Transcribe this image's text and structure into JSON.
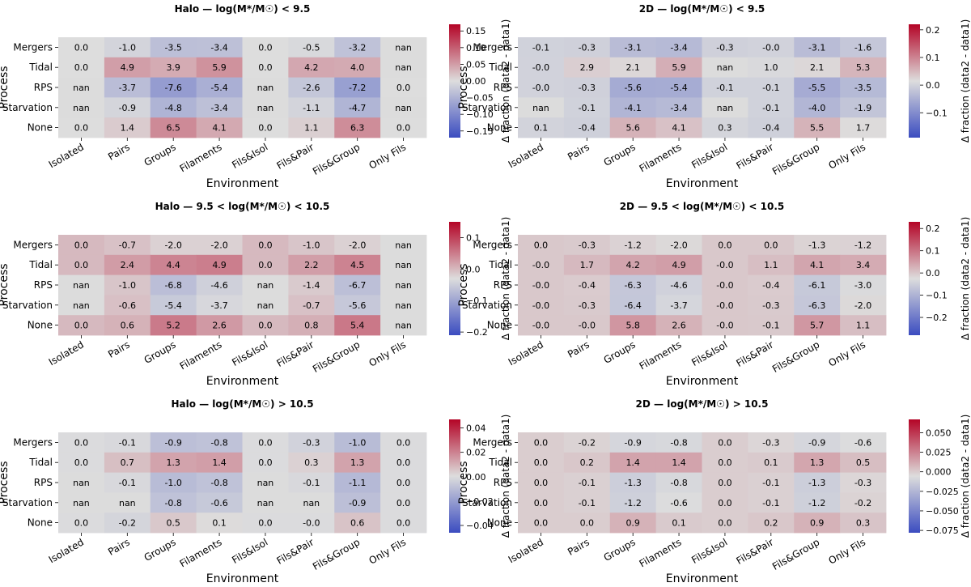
{
  "chart_data": [
    {
      "type": "heatmap",
      "title": "Halo — log(M*/M☉) < 9.5",
      "xlabel": "Environment",
      "ylabel": "Process",
      "colorbar_label": "Δ fraction (data2 - data1)",
      "x_categories": [
        "Isolated",
        "Pairs",
        "Groups",
        "Filaments",
        "Fils&Isol",
        "Fils&Pair",
        "Fils&Group",
        "Only Fils"
      ],
      "y_categories": [
        "Mergers",
        "Tidal",
        "RPS",
        "Starvation",
        "None"
      ],
      "vrange": [
        -0.17,
        0.17
      ],
      "colorbar_ticks": [
        0.15,
        0.1,
        0.05,
        0.0,
        -0.05,
        -0.1,
        -0.15
      ],
      "colorbar_tick_labels": [
        "0.15",
        "0.10",
        "0.05",
        "0.00",
        "−0.05",
        "−0.10",
        "−0.15"
      ],
      "values": [
        [
          0.0,
          -1.0,
          -3.5,
          -3.4,
          0.0,
          -0.5,
          -3.2,
          null
        ],
        [
          0.0,
          4.9,
          3.9,
          5.9,
          0.0,
          4.2,
          4.0,
          null
        ],
        [
          null,
          -3.7,
          -7.6,
          -5.4,
          null,
          -2.6,
          -7.2,
          0.0
        ],
        [
          null,
          -0.9,
          -4.8,
          -3.4,
          null,
          -1.1,
          -4.7,
          null
        ],
        [
          0.0,
          1.4,
          6.5,
          4.1,
          0.0,
          1.1,
          6.3,
          0.0
        ]
      ],
      "labels": [
        [
          "0.0",
          "-1.0",
          "-3.5",
          "-3.4",
          "0.0",
          "-0.5",
          "-3.2",
          "nan"
        ],
        [
          "0.0",
          "4.9",
          "3.9",
          "5.9",
          "0.0",
          "4.2",
          "4.0",
          "nan"
        ],
        [
          "nan",
          "-3.7",
          "-7.6",
          "-5.4",
          "nan",
          "-2.6",
          "-7.2",
          "0.0"
        ],
        [
          "nan",
          "-0.9",
          "-4.8",
          "-3.4",
          "nan",
          "-1.1",
          "-4.7",
          "nan"
        ],
        [
          "0.0",
          "1.4",
          "6.5",
          "4.1",
          "0.0",
          "1.1",
          "6.3",
          "0.0"
        ]
      ]
    },
    {
      "type": "heatmap",
      "title": "2D — log(M*/M☉) < 9.5",
      "xlabel": "Environment",
      "ylabel": "Process",
      "colorbar_label": "Δ fraction (data2 - data1)",
      "x_categories": [
        "Isolated",
        "Pairs",
        "Groups",
        "Filaments",
        "Fils&Isol",
        "Fils&Pair",
        "Fils&Group",
        "Only Fils"
      ],
      "y_categories": [
        "Mergers",
        "Tidal",
        "RPS",
        "Starvation",
        "None"
      ],
      "vrange": [
        -0.19,
        0.22
      ],
      "colorbar_ticks": [
        0.2,
        0.1,
        0.0,
        -0.1
      ],
      "colorbar_tick_labels": [
        "0.2",
        "0.1",
        "0.0",
        "−0.1"
      ],
      "values": [
        [
          -0.1,
          -0.3,
          -3.1,
          -3.4,
          -0.3,
          -0.0,
          -3.1,
          -1.6
        ],
        [
          -0.0,
          2.9,
          2.1,
          5.9,
          null,
          1.0,
          2.1,
          5.3
        ],
        [
          -0.0,
          -0.3,
          -5.6,
          -5.4,
          -0.1,
          -0.1,
          -5.5,
          -3.5
        ],
        [
          null,
          -0.1,
          -4.1,
          -3.4,
          null,
          -0.1,
          -4.0,
          -1.9
        ],
        [
          0.1,
          -0.4,
          5.6,
          4.1,
          0.3,
          -0.4,
          5.5,
          1.7
        ]
      ],
      "labels": [
        [
          "-0.1",
          "-0.3",
          "-3.1",
          "-3.4",
          "-0.3",
          "-0.0",
          "-3.1",
          "-1.6"
        ],
        [
          "-0.0",
          "2.9",
          "2.1",
          "5.9",
          "nan",
          "1.0",
          "2.1",
          "5.3"
        ],
        [
          "-0.0",
          "-0.3",
          "-5.6",
          "-5.4",
          "-0.1",
          "-0.1",
          "-5.5",
          "-3.5"
        ],
        [
          "nan",
          "-0.1",
          "-4.1",
          "-3.4",
          "nan",
          "-0.1",
          "-4.0",
          "-1.9"
        ],
        [
          "0.1",
          "-0.4",
          "5.6",
          "4.1",
          "0.3",
          "-0.4",
          "5.5",
          "1.7"
        ]
      ]
    },
    {
      "type": "heatmap",
      "title": "Halo — 9.5 < log(M*/M☉) < 10.5",
      "xlabel": "Environment",
      "ylabel": "Process",
      "colorbar_label": "Δ fraction (data2 - data1)",
      "x_categories": [
        "Isolated",
        "Pairs",
        "Groups",
        "Filaments",
        "Fils&Isol",
        "Fils&Pair",
        "Fils&Group",
        "Only Fils"
      ],
      "y_categories": [
        "Mergers",
        "Tidal",
        "RPS",
        "Starvation",
        "None"
      ],
      "vrange": [
        -0.21,
        0.15
      ],
      "colorbar_ticks": [
        0.1,
        0.0,
        -0.1,
        -0.2
      ],
      "colorbar_tick_labels": [
        "0.1",
        "0.0",
        "−0.1",
        "−0.2"
      ],
      "values": [
        [
          0.0,
          -0.7,
          -2.0,
          -2.0,
          0.0,
          -1.0,
          -2.0,
          null
        ],
        [
          0.0,
          2.4,
          4.4,
          4.9,
          0.0,
          2.2,
          4.5,
          null
        ],
        [
          null,
          -1.0,
          -6.8,
          -4.6,
          null,
          -1.4,
          -6.7,
          null
        ],
        [
          null,
          -0.6,
          -5.4,
          -3.7,
          null,
          -0.7,
          -5.6,
          null
        ],
        [
          0.0,
          0.6,
          5.2,
          2.6,
          0.0,
          0.8,
          5.4,
          null
        ]
      ],
      "labels": [
        [
          "0.0",
          "-0.7",
          "-2.0",
          "-2.0",
          "0.0",
          "-1.0",
          "-2.0",
          "nan"
        ],
        [
          "0.0",
          "2.4",
          "4.4",
          "4.9",
          "0.0",
          "2.2",
          "4.5",
          "nan"
        ],
        [
          "nan",
          "-1.0",
          "-6.8",
          "-4.6",
          "nan",
          "-1.4",
          "-6.7",
          "nan"
        ],
        [
          "nan",
          "-0.6",
          "-5.4",
          "-3.7",
          "nan",
          "-0.7",
          "-5.6",
          "nan"
        ],
        [
          "0.0",
          "0.6",
          "5.2",
          "2.6",
          "0.0",
          "0.8",
          "5.4",
          "nan"
        ]
      ]
    },
    {
      "type": "heatmap",
      "title": "2D — 9.5 < log(M*/M☉) < 10.5",
      "xlabel": "Environment",
      "ylabel": "Process",
      "colorbar_label": "Δ fraction (data2 - data1)",
      "x_categories": [
        "Isolated",
        "Pairs",
        "Groups",
        "Filaments",
        "Fils&Isol",
        "Fils&Pair",
        "Fils&Group",
        "Only Fils"
      ],
      "y_categories": [
        "Mergers",
        "Tidal",
        "RPS",
        "Starvation",
        "None"
      ],
      "vrange": [
        -0.28,
        0.23
      ],
      "colorbar_ticks": [
        0.2,
        0.1,
        0.0,
        -0.1,
        -0.2
      ],
      "colorbar_tick_labels": [
        "0.2",
        "0.1",
        "0.0",
        "−0.1",
        "−0.2"
      ],
      "values": [
        [
          0.0,
          -0.3,
          -1.2,
          -2.0,
          0.0,
          0.0,
          -1.3,
          -1.2
        ],
        [
          -0.0,
          1.7,
          4.2,
          4.9,
          -0.0,
          1.1,
          4.1,
          3.4
        ],
        [
          -0.0,
          -0.4,
          -6.3,
          -4.6,
          -0.0,
          -0.4,
          -6.1,
          -3.0
        ],
        [
          -0.0,
          -0.3,
          -6.4,
          -3.7,
          -0.0,
          -0.3,
          -6.3,
          -2.0
        ],
        [
          -0.0,
          -0.0,
          5.8,
          2.6,
          -0.0,
          -0.1,
          5.7,
          1.1
        ]
      ],
      "labels": [
        [
          "0.0",
          "-0.3",
          "-1.2",
          "-2.0",
          "0.0",
          "0.0",
          "-1.3",
          "-1.2"
        ],
        [
          "-0.0",
          "1.7",
          "4.2",
          "4.9",
          "-0.0",
          "1.1",
          "4.1",
          "3.4"
        ],
        [
          "-0.0",
          "-0.4",
          "-6.3",
          "-4.6",
          "-0.0",
          "-0.4",
          "-6.1",
          "-3.0"
        ],
        [
          "-0.0",
          "-0.3",
          "-6.4",
          "-3.7",
          "-0.0",
          "-0.3",
          "-6.3",
          "-2.0"
        ],
        [
          "-0.0",
          "-0.0",
          "5.8",
          "2.6",
          "-0.0",
          "-0.1",
          "5.7",
          "1.1"
        ]
      ]
    },
    {
      "type": "heatmap",
      "title": "Halo — log(M*/M☉) > 10.5",
      "xlabel": "Environment",
      "ylabel": "Process",
      "colorbar_label": "Δ fraction (data2 - data1)",
      "x_categories": [
        "Isolated",
        "Pairs",
        "Groups",
        "Filaments",
        "Fils&Isol",
        "Fils&Pair",
        "Fils&Group",
        "Only Fils"
      ],
      "y_categories": [
        "Mergers",
        "Tidal",
        "RPS",
        "Starvation",
        "None"
      ],
      "vrange": [
        -0.046,
        0.047
      ],
      "colorbar_ticks": [
        0.04,
        0.02,
        0.0,
        -0.02,
        -0.04
      ],
      "colorbar_tick_labels": [
        "0.04",
        "0.02",
        "0.00",
        "−0.02",
        "−0.04"
      ],
      "values": [
        [
          0.0,
          -0.1,
          -0.9,
          -0.8,
          0.0,
          -0.3,
          -1.0,
          0.0
        ],
        [
          0.0,
          0.7,
          1.3,
          1.4,
          0.0,
          0.3,
          1.3,
          0.0
        ],
        [
          null,
          -0.1,
          -1.0,
          -0.8,
          null,
          -0.1,
          -1.1,
          0.0
        ],
        [
          null,
          null,
          -0.8,
          -0.6,
          null,
          null,
          -0.9,
          0.0
        ],
        [
          0.0,
          -0.2,
          0.5,
          0.1,
          0.0,
          -0.0,
          0.6,
          0.0
        ]
      ],
      "labels": [
        [
          "0.0",
          "-0.1",
          "-0.9",
          "-0.8",
          "0.0",
          "-0.3",
          "-1.0",
          "0.0"
        ],
        [
          "0.0",
          "0.7",
          "1.3",
          "1.4",
          "0.0",
          "0.3",
          "1.3",
          "0.0"
        ],
        [
          "nan",
          "-0.1",
          "-1.0",
          "-0.8",
          "nan",
          "-0.1",
          "-1.1",
          "0.0"
        ],
        [
          "nan",
          "nan",
          "-0.8",
          "-0.6",
          "nan",
          "nan",
          "-0.9",
          "0.0"
        ],
        [
          "0.0",
          "-0.2",
          "0.5",
          "0.1",
          "0.0",
          "-0.0",
          "0.6",
          "0.0"
        ]
      ]
    },
    {
      "type": "heatmap",
      "title": "2D — log(M*/M☉) > 10.5",
      "xlabel": "Environment",
      "ylabel": "Process",
      "colorbar_label": "Δ fraction (data2 - data1)",
      "x_categories": [
        "Isolated",
        "Pairs",
        "Groups",
        "Filaments",
        "Fils&Isol",
        "Fils&Pair",
        "Fils&Group",
        "Only Fils"
      ],
      "y_categories": [
        "Mergers",
        "Tidal",
        "RPS",
        "Starvation",
        "None"
      ],
      "vrange": [
        -0.078,
        0.067
      ],
      "colorbar_ticks": [
        0.05,
        0.025,
        0.0,
        -0.025,
        -0.05,
        -0.075
      ],
      "colorbar_tick_labels": [
        "0.050",
        "0.025",
        "0.000",
        "−0.025",
        "−0.050",
        "−0.075"
      ],
      "values": [
        [
          0.0,
          -0.2,
          -0.9,
          -0.8,
          0.0,
          -0.3,
          -0.9,
          -0.6
        ],
        [
          0.0,
          0.2,
          1.4,
          1.4,
          0.0,
          0.1,
          1.3,
          0.5
        ],
        [
          0.0,
          -0.1,
          -1.3,
          -0.8,
          0.0,
          -0.1,
          -1.3,
          -0.3
        ],
        [
          0.0,
          -0.1,
          -1.2,
          -0.6,
          0.0,
          -0.1,
          -1.2,
          -0.2
        ],
        [
          0.0,
          0.0,
          0.9,
          0.1,
          0.0,
          0.2,
          0.9,
          0.3
        ]
      ],
      "labels": [
        [
          "0.0",
          "-0.2",
          "-0.9",
          "-0.8",
          "0.0",
          "-0.3",
          "-0.9",
          "-0.6"
        ],
        [
          "0.0",
          "0.2",
          "1.4",
          "1.4",
          "0.0",
          "0.1",
          "1.3",
          "0.5"
        ],
        [
          "0.0",
          "-0.1",
          "-1.3",
          "-0.8",
          "0.0",
          "-0.1",
          "-1.3",
          "-0.3"
        ],
        [
          "0.0",
          "-0.1",
          "-1.2",
          "-0.6",
          "0.0",
          "-0.1",
          "-1.2",
          "-0.2"
        ],
        [
          "0.0",
          "0.0",
          "0.9",
          "0.1",
          "0.0",
          "0.2",
          "0.9",
          "0.3"
        ]
      ]
    }
  ],
  "colors": {
    "nan_cell": "#dcdcdc",
    "cmap_low": "#3b4cc0",
    "cmap_mid": "#dddddd",
    "cmap_high": "#b40426"
  }
}
